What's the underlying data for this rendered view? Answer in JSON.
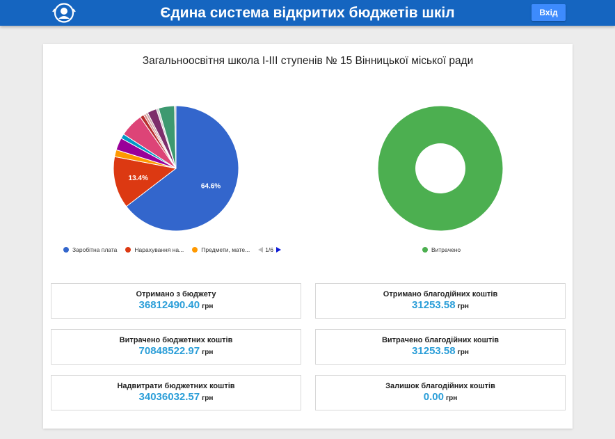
{
  "header": {
    "title": "Єдина система відкритих бюджетів шкіл",
    "login_label": "Вхід",
    "logo_icon": "school-logo-icon",
    "bar_color": "#1565c0"
  },
  "school": {
    "title": "Загальноосвітня школа І-ІІІ ступенів № 15 Вінницької міської ради"
  },
  "chart_data": [
    {
      "type": "pie",
      "slices": [
        {
          "label": "Заробітна плата",
          "value": 64.6,
          "color": "#3366cc",
          "shown_label": "64.6%"
        },
        {
          "label": "Нарахування на...",
          "value": 13.4,
          "color": "#dc3912",
          "shown_label": "13.4%"
        },
        {
          "label": "Предмети, мате...",
          "value": 1.8,
          "color": "#ff9900"
        },
        {
          "label": "",
          "value": 3.2,
          "color": "#990099"
        },
        {
          "label": "",
          "value": 1.2,
          "color": "#0099c6"
        },
        {
          "label": "",
          "value": 6.1,
          "color": "#dd4477"
        },
        {
          "label": "",
          "value": 1.0,
          "color": "#b82e2e"
        },
        {
          "label": "",
          "value": 0.6,
          "color": "#d98c8c"
        },
        {
          "label": "",
          "value": 0.6,
          "color": "#ccaaaa"
        },
        {
          "label": "",
          "value": 2.4,
          "color": "#7d2e6b"
        },
        {
          "label": "",
          "value": 0.6,
          "color": "#cfcfcf"
        },
        {
          "label": "",
          "value": 4.1,
          "color": "#3d9970"
        },
        {
          "label": "",
          "value": 0.4,
          "color": "#bfbfbf"
        }
      ],
      "legend": [
        "Заробітна плата",
        "Нарахування на...",
        "Предмети, мате..."
      ],
      "legend_page": "1/6"
    },
    {
      "type": "pie",
      "donut": true,
      "slices": [
        {
          "label": "Витрачено",
          "value": 100,
          "color": "#4caf50"
        }
      ],
      "legend": [
        "Витрачено"
      ]
    }
  ],
  "stats": {
    "left": [
      {
        "label": "Отримано з бюджету",
        "value": "36812490.40",
        "unit": "грн"
      },
      {
        "label": "Витрачено бюджетних коштів",
        "value": "70848522.97",
        "unit": "грн"
      },
      {
        "label": "Надвитрати бюджетних коштів",
        "value": "34036032.57",
        "unit": "грн"
      }
    ],
    "right": [
      {
        "label": "Отримано благодійних коштів",
        "value": "31253.58",
        "unit": "грн"
      },
      {
        "label": "Витрачено благодійних коштів",
        "value": "31253.58",
        "unit": "грн"
      },
      {
        "label": "Залишок благодійних коштів",
        "value": "0.00",
        "unit": "грн"
      }
    ]
  }
}
